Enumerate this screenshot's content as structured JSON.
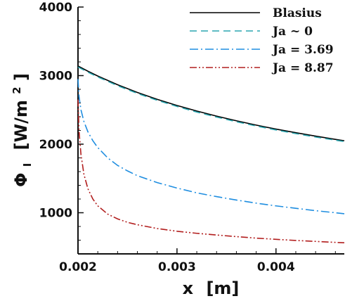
{
  "chart_data": {
    "type": "line",
    "xlabel": "x",
    "xlabel_unit": "[m]",
    "ylabel_main": "Φ",
    "ylabel_sub": "I",
    "ylabel_unit_prefix": "[W/m",
    "ylabel_unit_exp": "2",
    "ylabel_unit_suffix": "]",
    "xlim": [
      0.002,
      0.00469
    ],
    "ylim": [
      400,
      4000
    ],
    "x_ticks": [
      {
        "value": 0.002,
        "label": "0.002"
      },
      {
        "value": 0.003,
        "label": "0.003"
      },
      {
        "value": 0.004,
        "label": "0.004"
      }
    ],
    "y_ticks": [
      {
        "value": 1000,
        "label": "1000"
      },
      {
        "value": 2000,
        "label": "2000"
      },
      {
        "value": 3000,
        "label": "3000"
      },
      {
        "value": 4000,
        "label": "4000"
      }
    ],
    "x_minor_step": 0.0002,
    "y_minor_step": 200,
    "legend_position": "top-right",
    "grid": false,
    "series": [
      {
        "name": "Blasius",
        "color": "#000000",
        "dash": "solid",
        "x": [
          0.002,
          0.0021,
          0.0022,
          0.0024,
          0.0026,
          0.0028,
          0.003,
          0.0032,
          0.0034,
          0.0036,
          0.0038,
          0.004,
          0.0042,
          0.0044,
          0.0046,
          0.00469
        ],
        "y": [
          3140,
          3064,
          2994,
          2867,
          2754,
          2654,
          2564,
          2483,
          2409,
          2341,
          2278,
          2220,
          2167,
          2117,
          2070,
          2050
        ]
      },
      {
        "name": "Ja ~ 0",
        "color": "#2ba6b0",
        "dash": "dashed",
        "x": [
          0.002,
          0.0021,
          0.0022,
          0.0024,
          0.0026,
          0.0028,
          0.003,
          0.0032,
          0.0034,
          0.0036,
          0.0038,
          0.004,
          0.0042,
          0.0044,
          0.0046,
          0.00469
        ],
        "y": [
          3125,
          3050,
          2980,
          2853,
          2740,
          2640,
          2550,
          2468,
          2395,
          2327,
          2265,
          2207,
          2154,
          2104,
          2058,
          2038
        ]
      },
      {
        "name": "Ja = 3.69",
        "color": "#1f8ee0",
        "dash": "dashdot",
        "x": [
          0.002,
          0.00201,
          0.00203,
          0.00206,
          0.0021,
          0.00215,
          0.0022,
          0.0023,
          0.0024,
          0.0025,
          0.0026,
          0.0028,
          0.003,
          0.0032,
          0.0034,
          0.0036,
          0.0038,
          0.004,
          0.0042,
          0.0044,
          0.0046,
          0.00469
        ],
        "y": [
          2950,
          2700,
          2500,
          2330,
          2180,
          2050,
          1950,
          1800,
          1690,
          1610,
          1540,
          1440,
          1360,
          1290,
          1235,
          1185,
          1140,
          1100,
          1065,
          1030,
          1000,
          985
        ]
      },
      {
        "name": "Ja = 8.87",
        "color": "#b21e1e",
        "dash": "dashdotdot",
        "x": [
          0.002,
          0.00201,
          0.00203,
          0.00206,
          0.0021,
          0.00215,
          0.0022,
          0.0023,
          0.0024,
          0.0025,
          0.0026,
          0.0028,
          0.003,
          0.0032,
          0.0034,
          0.0036,
          0.0038,
          0.004,
          0.0042,
          0.0044,
          0.0046,
          0.00469
        ],
        "y": [
          2650,
          2200,
          1850,
          1560,
          1350,
          1200,
          1100,
          980,
          910,
          860,
          825,
          770,
          730,
          700,
          675,
          652,
          630,
          612,
          596,
          582,
          568,
          562
        ]
      }
    ]
  }
}
